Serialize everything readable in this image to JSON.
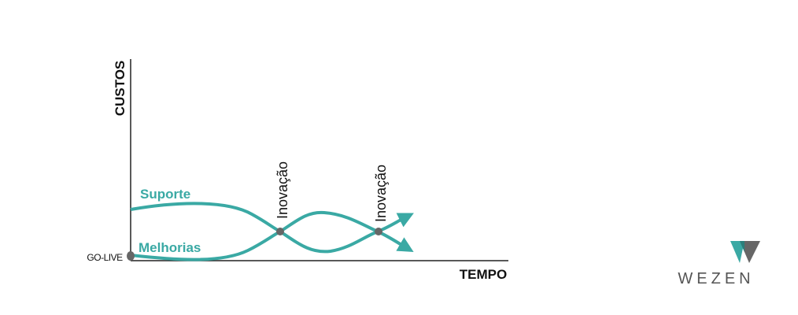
{
  "axes": {
    "y_label": "CUSTOS",
    "x_label": "TEMPO",
    "origin_label": "GO-LIVE"
  },
  "curves": [
    {
      "label": "Suporte"
    },
    {
      "label": "Melhorias"
    }
  ],
  "milestones": [
    {
      "label": "Inovação"
    },
    {
      "label": "Inovação"
    }
  ],
  "logo": {
    "text": "WEZEN"
  }
}
